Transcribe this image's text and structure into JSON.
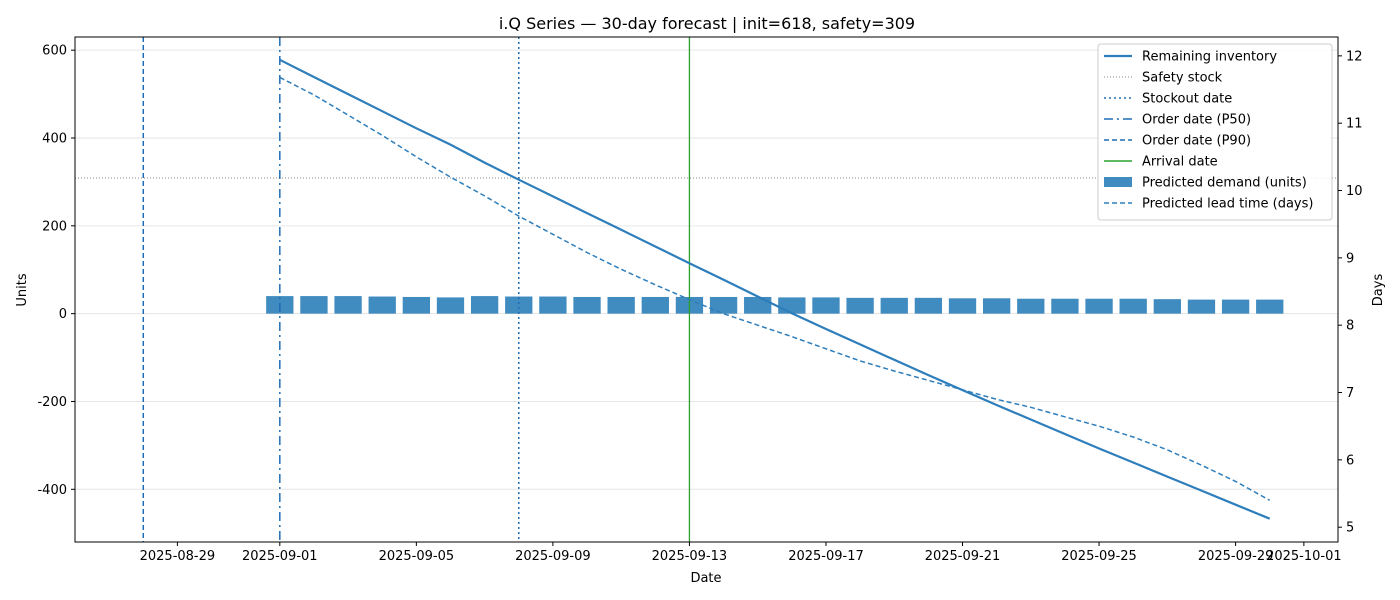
{
  "chart_data": {
    "type": "line",
    "title": "i.Q Series — 30-day forecast | init=618, safety=309",
    "xlabel": "Date",
    "ylabel": "Units",
    "y2label": "Days",
    "xlim": [
      "2025-08-26",
      "2025-10-02"
    ],
    "ylim": [
      -520,
      630
    ],
    "y2lim": [
      4.78,
      12.28
    ],
    "x_ticks": [
      "2025-08-29",
      "2025-09-01",
      "2025-09-05",
      "2025-09-09",
      "2025-09-13",
      "2025-09-17",
      "2025-09-21",
      "2025-09-25",
      "2025-09-29",
      "2025-10-01"
    ],
    "y_ticks": [
      -400,
      -200,
      0,
      200,
      400,
      600
    ],
    "y2_ticks": [
      5,
      6,
      7,
      8,
      9,
      10,
      11,
      12
    ],
    "grid": "horizontal",
    "legend_position": "top-right",
    "colors": {
      "inventory": "#2e7ebc",
      "safety": "#888888",
      "markers": "#1f6db5",
      "arrival": "#2ca02c",
      "bars": "#1f77b4"
    },
    "dates": [
      "2025-09-01",
      "2025-09-02",
      "2025-09-03",
      "2025-09-04",
      "2025-09-05",
      "2025-09-06",
      "2025-09-07",
      "2025-09-08",
      "2025-09-09",
      "2025-09-10",
      "2025-09-11",
      "2025-09-12",
      "2025-09-13",
      "2025-09-14",
      "2025-09-15",
      "2025-09-16",
      "2025-09-17",
      "2025-09-18",
      "2025-09-19",
      "2025-09-20",
      "2025-09-21",
      "2025-09-22",
      "2025-09-23",
      "2025-09-24",
      "2025-09-25",
      "2025-09-26",
      "2025-09-27",
      "2025-09-28",
      "2025-09-29",
      "2025-09-30"
    ],
    "series": [
      {
        "name": "Remaining inventory",
        "axis": "left",
        "style": "solid",
        "values": [
          578,
          539,
          500,
          461,
          422,
          385,
          344,
          305,
          267,
          229,
          191,
          153,
          115,
          77,
          39,
          1,
          -35,
          -70,
          -105,
          -140,
          -174,
          -208,
          -241,
          -274,
          -307,
          -339,
          -371,
          -403,
          -435,
          -467
        ]
      },
      {
        "name": "Predicted demand (units)",
        "axis": "left",
        "style": "bar",
        "values": [
          40,
          40,
          40,
          39,
          38,
          37,
          40,
          39,
          39,
          38,
          38,
          38,
          38,
          38,
          38,
          37,
          37,
          36,
          36,
          36,
          35,
          35,
          34,
          34,
          34,
          34,
          33,
          32,
          32,
          32
        ]
      },
      {
        "name": "Predicted lead time (days)",
        "axis": "right",
        "style": "dashed",
        "values": [
          11.68,
          11.42,
          11.12,
          10.82,
          10.5,
          10.2,
          9.92,
          9.62,
          9.35,
          9.08,
          8.83,
          8.6,
          8.38,
          8.17,
          8.0,
          7.83,
          7.65,
          7.47,
          7.32,
          7.18,
          7.04,
          6.9,
          6.78,
          6.64,
          6.5,
          6.34,
          6.15,
          5.92,
          5.68,
          5.4
        ]
      }
    ],
    "safety_stock": {
      "name": "Safety stock",
      "value": 309
    },
    "vlines": [
      {
        "name": "Stockout date",
        "date": "2025-09-08",
        "style": "dotted"
      },
      {
        "name": "Order date (P50)",
        "date": "2025-09-01",
        "style": "dashdot"
      },
      {
        "name": "Order date (P90)",
        "date": "2025-08-28",
        "style": "dashed"
      },
      {
        "name": "Arrival date",
        "date": "2025-09-13",
        "style": "solid"
      }
    ],
    "legend": [
      "Remaining inventory",
      "Safety stock",
      "Stockout date",
      "Order date (P50)",
      "Order date (P90)",
      "Arrival date",
      "Predicted demand (units)",
      "Predicted lead time (days)"
    ]
  }
}
